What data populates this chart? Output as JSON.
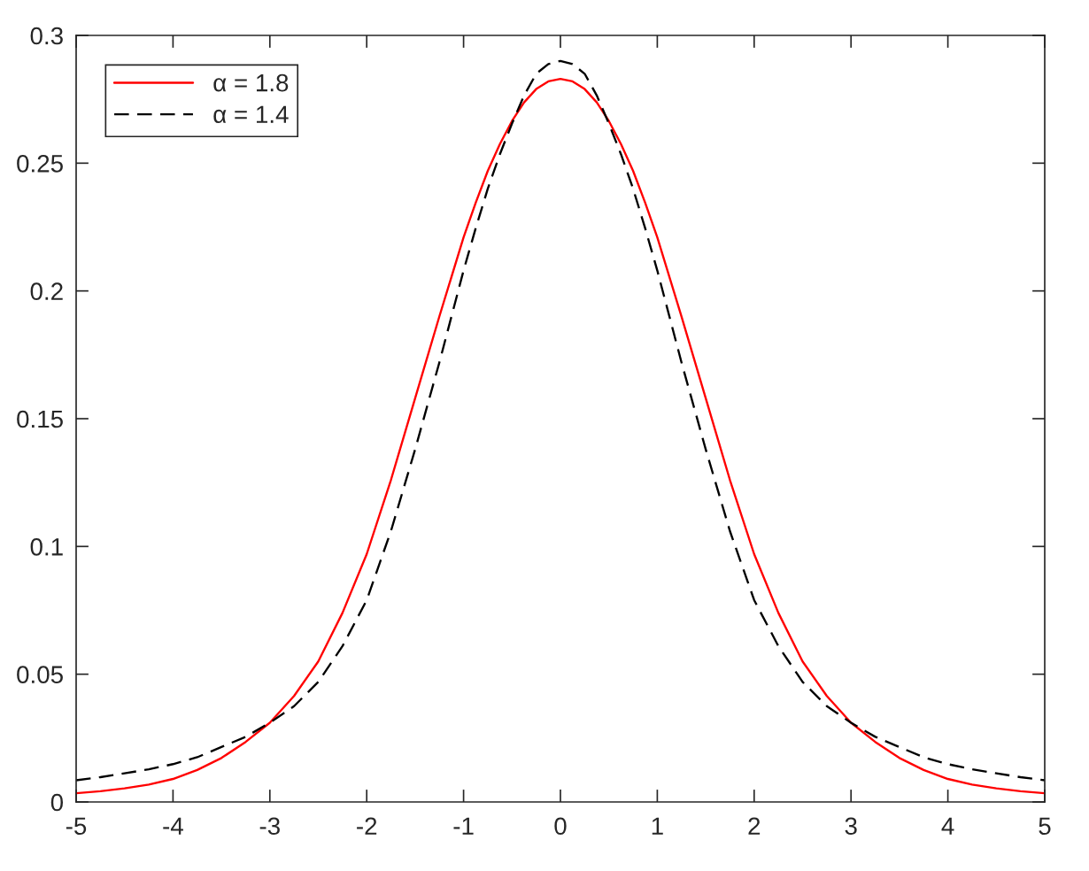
{
  "chart_data": {
    "type": "line",
    "x": [
      -5,
      -4.75,
      -4.5,
      -4.25,
      -4,
      -3.75,
      -3.5,
      -3.25,
      -3,
      -2.75,
      -2.5,
      -2.25,
      -2,
      -1.75,
      -1.5,
      -1.25,
      -1,
      -0.875,
      -0.75,
      -0.625,
      -0.5,
      -0.375,
      -0.25,
      -0.125,
      0,
      0.125,
      0.25,
      0.375,
      0.5,
      0.625,
      0.75,
      0.875,
      1,
      1.25,
      1.5,
      1.75,
      2,
      2.25,
      2.5,
      2.75,
      3,
      3.25,
      3.5,
      3.75,
      4,
      4.25,
      4.5,
      4.75,
      5
    ],
    "series": [
      {
        "name": "α = 1.8",
        "color": "#ff0000",
        "line_style": "solid",
        "values": [
          0.0034,
          0.0042,
          0.0053,
          0.0068,
          0.009,
          0.0125,
          0.0172,
          0.0235,
          0.031,
          0.0415,
          0.055,
          0.074,
          0.097,
          0.126,
          0.158,
          0.19,
          0.221,
          0.2345,
          0.247,
          0.2575,
          0.2665,
          0.2738,
          0.279,
          0.282,
          0.283,
          0.282,
          0.279,
          0.2738,
          0.2665,
          0.2575,
          0.247,
          0.2345,
          0.221,
          0.19,
          0.158,
          0.126,
          0.097,
          0.074,
          0.055,
          0.0415,
          0.031,
          0.0235,
          0.0172,
          0.0125,
          0.009,
          0.0068,
          0.0053,
          0.0042,
          0.0034
        ]
      },
      {
        "name": "α = 1.4",
        "color": "#000000",
        "line_style": "dashed",
        "values": [
          0.0085,
          0.0097,
          0.0112,
          0.0128,
          0.0148,
          0.0175,
          0.0215,
          0.0255,
          0.031,
          0.0375,
          0.047,
          0.061,
          0.079,
          0.106,
          0.138,
          0.172,
          0.208,
          0.2245,
          0.24,
          0.2535,
          0.2655,
          0.2765,
          0.285,
          0.2888,
          0.29,
          0.2888,
          0.285,
          0.2765,
          0.2655,
          0.2535,
          0.24,
          0.2245,
          0.208,
          0.172,
          0.138,
          0.106,
          0.079,
          0.061,
          0.047,
          0.0375,
          0.031,
          0.0255,
          0.0215,
          0.0175,
          0.0148,
          0.0128,
          0.0112,
          0.0097,
          0.0085
        ]
      }
    ],
    "xlim": [
      -5,
      5
    ],
    "ylim": [
      0,
      0.3
    ],
    "xticks": [
      -5,
      -4,
      -3,
      -2,
      -1,
      0,
      1,
      2,
      3,
      4,
      5
    ],
    "yticks": [
      0,
      0.05,
      0.1,
      0.15,
      0.2,
      0.25,
      0.3
    ],
    "legend": "top left"
  }
}
